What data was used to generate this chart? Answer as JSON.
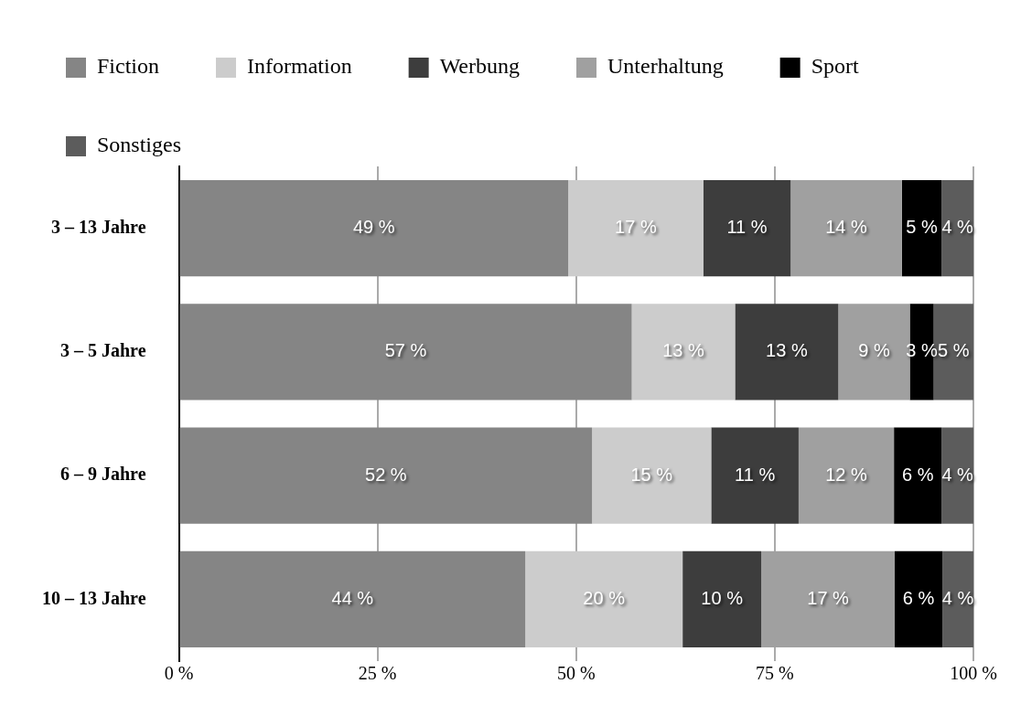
{
  "chart_data": {
    "type": "bar",
    "orientation": "horizontal",
    "stacked": true,
    "categories": [
      "3 – 13 Jahre",
      "3 – 5 Jahre",
      "6 – 9 Jahre",
      "10 – 13 Jahre"
    ],
    "series": [
      {
        "name": "Fiction",
        "color": "#858585",
        "values": [
          49,
          57,
          52,
          43.6
        ],
        "value_labels": [
          "49 %",
          "57 %",
          "52 %",
          "44 %"
        ]
      },
      {
        "name": "Information",
        "color": "#cccccc",
        "values": [
          17,
          13,
          15,
          19.8
        ],
        "value_labels": [
          "17 %",
          "13 %",
          "15 %",
          "20 %"
        ]
      },
      {
        "name": "Werbung",
        "color": "#3d3d3d",
        "values": [
          11,
          13,
          11,
          9.9
        ],
        "value_labels": [
          "11 %",
          "13 %",
          "11 %",
          "10 %"
        ]
      },
      {
        "name": "Unterhaltung",
        "color": "#a0a0a0",
        "values": [
          14,
          9,
          12,
          16.8
        ],
        "value_labels": [
          "14 %",
          "9 %",
          "12 %",
          "17 %"
        ]
      },
      {
        "name": "Sport",
        "color": "#000000",
        "values": [
          5,
          3,
          6,
          6.0
        ],
        "value_labels": [
          "5 %",
          "3 %",
          "6 %",
          "6 %"
        ]
      },
      {
        "name": "Sonstiges",
        "color": "#5c5c5c",
        "values": [
          4,
          5,
          4,
          3.9
        ],
        "value_labels": [
          "4 %",
          "5 %",
          "4 %",
          "4 %"
        ]
      }
    ],
    "xlim": [
      0,
      100
    ],
    "xticks": [
      {
        "value": 0,
        "label": "0 %"
      },
      {
        "value": 25,
        "label": "25 %"
      },
      {
        "value": 50,
        "label": "50 %"
      },
      {
        "value": 75,
        "label": "75 %"
      },
      {
        "value": 100,
        "label": "100 %"
      }
    ],
    "grid": "x",
    "legend": "top left"
  }
}
